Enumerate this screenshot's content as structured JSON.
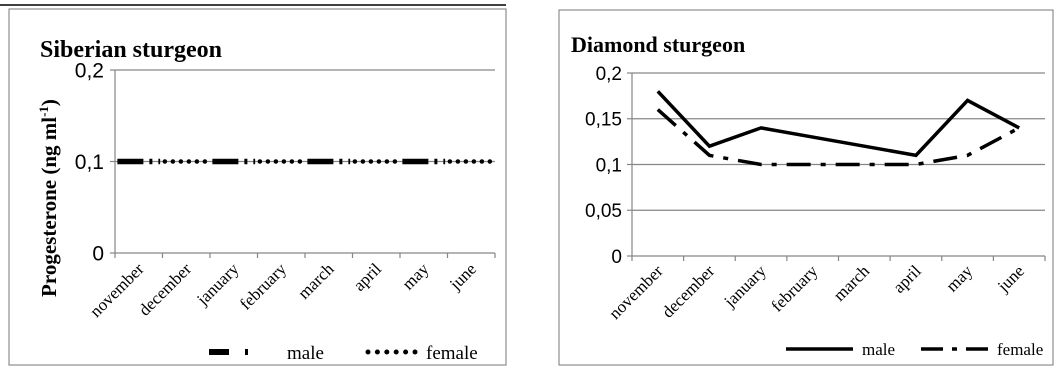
{
  "chart_data": [
    {
      "type": "line",
      "title": "Siberian sturgeon",
      "ylabel": "Progesterone (ng ml",
      "ylabel_sup": "-1",
      "ylabel_close": ")",
      "categories": [
        "november",
        "december",
        "january",
        "february",
        "march",
        "april",
        "may",
        "june"
      ],
      "yticks": [
        "0",
        "0,1",
        "0,2"
      ],
      "ytick_values": [
        0,
        0.1,
        0.2
      ],
      "ylim": [
        0,
        0.2
      ],
      "grid": true,
      "legend_position": "bottom",
      "series": [
        {
          "name": "male",
          "style": "dash-dot",
          "values": [
            0.1,
            0.1,
            0.1,
            0.1,
            0.1,
            0.1,
            0.1,
            0.1
          ]
        },
        {
          "name": "female",
          "style": "dotted",
          "values": [
            0.1,
            0.1,
            0.1,
            0.1,
            0.1,
            0.1,
            0.1,
            0.1
          ]
        }
      ]
    },
    {
      "type": "line",
      "title": "Diamond sturgeon",
      "categories": [
        "november",
        "december",
        "january",
        "february",
        "march",
        "april",
        "may",
        "june"
      ],
      "yticks": [
        "0",
        "0,05",
        "0,1",
        "0,15",
        "0,2"
      ],
      "ytick_values": [
        0,
        0.05,
        0.1,
        0.15,
        0.2
      ],
      "ylim": [
        0,
        0.2
      ],
      "grid": true,
      "legend_position": "bottom",
      "series": [
        {
          "name": "male",
          "style": "solid",
          "values": [
            0.18,
            0.12,
            0.14,
            0.13,
            0.12,
            0.11,
            0.17,
            0.14
          ]
        },
        {
          "name": "female",
          "style": "dash-dot",
          "values": [
            0.16,
            0.11,
            0.1,
            0.1,
            0.1,
            0.1,
            0.11,
            0.14
          ]
        }
      ]
    }
  ]
}
